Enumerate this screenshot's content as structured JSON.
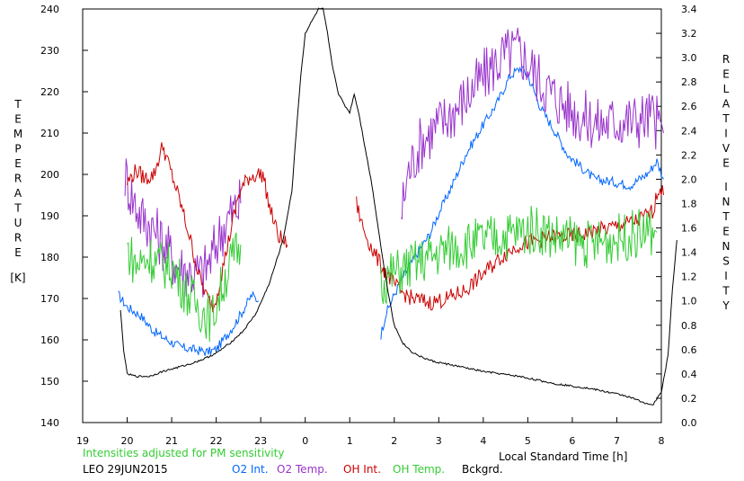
{
  "chart_data": {
    "type": "line",
    "left_axis": {
      "label_letters": [
        "T",
        "E",
        "M",
        "P",
        "E",
        "R",
        "A",
        "T",
        "U",
        "R",
        "E"
      ],
      "unit": "[K]",
      "range": [
        140,
        240
      ],
      "ticks": [
        140,
        150,
        160,
        170,
        180,
        190,
        200,
        210,
        220,
        230,
        240
      ]
    },
    "right_axis": {
      "label_word1": [
        "R",
        "E",
        "L",
        "A",
        "T",
        "I",
        "V",
        "E"
      ],
      "label_word2": [
        "I",
        "N",
        "T",
        "E",
        "N",
        "S",
        "I",
        "T",
        "Y"
      ],
      "range": [
        0.0,
        3.4
      ],
      "ticks": [
        "0.0",
        "0.2",
        "0.4",
        "0.6",
        "0.8",
        "1.0",
        "1.2",
        "1.4",
        "1.6",
        "1.8",
        "2.0",
        "2.2",
        "2.4",
        "2.6",
        "2.8",
        "3.0",
        "3.2",
        "3.4"
      ]
    },
    "x_axis": {
      "label": "Local Standard Time [h]",
      "ticks": [
        "19",
        "20",
        "21",
        "22",
        "23",
        "0",
        "1",
        "2",
        "3",
        "4",
        "5",
        "6",
        "7",
        "8"
      ]
    },
    "note": "Intensities adjusted for PM sensitivity",
    "station": "LEO 29JUN2015",
    "grid": false,
    "series": [
      {
        "name": "O2 Int.",
        "color": "#0066ff",
        "axis": "right",
        "segments": [
          [
            [
              19.8,
              1.05
            ],
            [
              20.0,
              0.95
            ],
            [
              20.3,
              0.88
            ],
            [
              20.6,
              0.75
            ],
            [
              20.9,
              0.68
            ],
            [
              21.2,
              0.62
            ],
            [
              21.5,
              0.6
            ],
            [
              21.8,
              0.58
            ],
            [
              22.0,
              0.6
            ],
            [
              22.2,
              0.7
            ],
            [
              22.4,
              0.8
            ],
            [
              22.6,
              0.92
            ],
            [
              22.8,
              1.05
            ],
            [
              22.95,
              1.0
            ]
          ],
          [
            [
              25.7,
              0.72
            ],
            [
              25.8,
              0.88
            ],
            [
              26.0,
              1.05
            ],
            [
              26.2,
              1.2
            ],
            [
              26.5,
              1.38
            ],
            [
              26.8,
              1.55
            ],
            [
              27.0,
              1.72
            ],
            [
              27.3,
              1.95
            ],
            [
              27.6,
              2.2
            ],
            [
              28.0,
              2.45
            ],
            [
              28.3,
              2.62
            ],
            [
              28.6,
              2.85
            ],
            [
              28.85,
              2.92
            ],
            [
              29.0,
              2.85
            ],
            [
              29.3,
              2.58
            ],
            [
              29.6,
              2.4
            ],
            [
              29.9,
              2.2
            ],
            [
              30.2,
              2.1
            ],
            [
              30.5,
              2.0
            ],
            [
              30.9,
              1.98
            ],
            [
              31.3,
              1.95
            ],
            [
              31.7,
              2.05
            ],
            [
              31.9,
              2.15
            ],
            [
              32.05,
              2.0
            ]
          ]
        ]
      },
      {
        "name": "O2 Temp.",
        "color": "#9933cc",
        "axis": "left",
        "segments": [
          [
            [
              19.95,
              200
            ],
            [
              20.1,
              195
            ],
            [
              20.3,
              190
            ],
            [
              20.5,
              188
            ],
            [
              20.7,
              185
            ],
            [
              20.9,
              182
            ],
            [
              21.1,
              178
            ],
            [
              21.3,
              177
            ],
            [
              21.5,
              176
            ],
            [
              21.7,
              176
            ],
            [
              21.9,
              180
            ],
            [
              22.1,
              186
            ],
            [
              22.3,
              190
            ],
            [
              22.55,
              193
            ]
          ],
          [
            [
              26.15,
              190
            ],
            [
              26.3,
              200
            ],
            [
              26.6,
              208
            ],
            [
              27.0,
              212
            ],
            [
              27.4,
              216
            ],
            [
              27.8,
              221
            ],
            [
              28.2,
              226
            ],
            [
              28.5,
              229
            ],
            [
              28.8,
              230
            ],
            [
              29.0,
              227
            ],
            [
              29.4,
              221
            ],
            [
              29.8,
              217
            ],
            [
              30.2,
              214
            ],
            [
              30.6,
              212
            ],
            [
              31.0,
              213
            ],
            [
              31.4,
              213
            ],
            [
              31.8,
              214
            ],
            [
              32.05,
              210
            ]
          ]
        ]
      },
      {
        "name": "OH Int.",
        "color": "#cc0000",
        "axis": "left",
        "segments": [
          [
            [
              20.0,
              198
            ],
            [
              20.2,
              201
            ],
            [
              20.4,
              199
            ],
            [
              20.6,
              200
            ],
            [
              20.8,
              207
            ],
            [
              21.0,
              200
            ],
            [
              21.2,
              193
            ],
            [
              21.4,
              185
            ],
            [
              21.6,
              176
            ],
            [
              21.8,
              170
            ],
            [
              21.95,
              168
            ],
            [
              22.1,
              175
            ],
            [
              22.3,
              185
            ],
            [
              22.5,
              195
            ],
            [
              22.7,
              199
            ],
            [
              22.9,
              200
            ],
            [
              23.05,
              200
            ],
            [
              23.2,
              192
            ],
            [
              23.4,
              185
            ],
            [
              23.6,
              183
            ]
          ],
          [
            [
              25.15,
              193
            ],
            [
              25.3,
              187
            ],
            [
              25.5,
              182
            ],
            [
              25.7,
              178
            ],
            [
              25.9,
              175
            ],
            [
              26.1,
              172
            ],
            [
              26.4,
              170
            ],
            [
              26.8,
              169
            ],
            [
              27.2,
              170
            ],
            [
              27.6,
              172
            ],
            [
              28.0,
              176
            ],
            [
              28.4,
              180
            ],
            [
              28.8,
              183
            ],
            [
              29.2,
              184
            ],
            [
              29.6,
              185
            ],
            [
              30.0,
              185
            ],
            [
              30.4,
              186
            ],
            [
              30.8,
              187
            ],
            [
              31.2,
              188
            ],
            [
              31.5,
              189
            ],
            [
              31.8,
              191
            ],
            [
              31.95,
              197
            ],
            [
              32.05,
              195
            ]
          ]
        ]
      },
      {
        "name": "OH Temp.",
        "color": "#33cc33",
        "axis": "left",
        "segments": [
          [
            [
              20.0,
              182
            ],
            [
              20.2,
              178
            ],
            [
              20.5,
              180
            ],
            [
              20.8,
              178
            ],
            [
              21.0,
              178
            ],
            [
              21.3,
              172
            ],
            [
              21.6,
              168
            ],
            [
              21.9,
              165
            ],
            [
              22.1,
              172
            ],
            [
              22.3,
              178
            ],
            [
              22.55,
              183
            ]
          ],
          [
            [
              25.7,
              174
            ],
            [
              26.0,
              176
            ],
            [
              26.4,
              178
            ],
            [
              26.8,
              180
            ],
            [
              27.2,
              182
            ],
            [
              27.6,
              183
            ],
            [
              28.0,
              184
            ],
            [
              28.4,
              185
            ],
            [
              28.8,
              186
            ],
            [
              29.2,
              187
            ],
            [
              29.6,
              185
            ],
            [
              30.0,
              184
            ],
            [
              30.4,
              183
            ],
            [
              30.8,
              184
            ],
            [
              31.2,
              185
            ],
            [
              31.6,
              186
            ],
            [
              31.9,
              186
            ]
          ]
        ]
      },
      {
        "name": "Bckgrd.",
        "color": "#000000",
        "axis": "right",
        "segments": [
          [
            [
              19.85,
              0.92
            ],
            [
              19.92,
              0.6
            ],
            [
              20.0,
              0.4
            ],
            [
              20.2,
              0.38
            ],
            [
              20.5,
              0.38
            ],
            [
              20.8,
              0.42
            ],
            [
              21.1,
              0.45
            ],
            [
              21.4,
              0.48
            ],
            [
              21.7,
              0.52
            ],
            [
              22.0,
              0.57
            ],
            [
              22.3,
              0.65
            ],
            [
              22.6,
              0.75
            ],
            [
              22.9,
              0.9
            ],
            [
              23.2,
              1.15
            ],
            [
              23.5,
              1.5
            ],
            [
              23.7,
              1.9
            ],
            [
              23.8,
              2.4
            ],
            [
              23.9,
              2.85
            ],
            [
              24.0,
              3.2
            ],
            [
              24.15,
              3.3
            ],
            [
              24.3,
              3.4
            ],
            [
              24.4,
              3.4
            ],
            [
              24.5,
              3.2
            ],
            [
              24.6,
              2.95
            ],
            [
              24.75,
              2.7
            ],
            [
              24.9,
              2.6
            ],
            [
              25.0,
              2.55
            ],
            [
              25.1,
              2.7
            ],
            [
              25.2,
              2.55
            ],
            [
              25.35,
              2.25
            ],
            [
              25.5,
              1.95
            ],
            [
              25.6,
              1.7
            ],
            [
              25.7,
              1.45
            ],
            [
              25.8,
              1.2
            ],
            [
              25.9,
              1.0
            ],
            [
              26.0,
              0.8
            ],
            [
              26.2,
              0.65
            ],
            [
              26.4,
              0.58
            ],
            [
              26.6,
              0.54
            ],
            [
              26.9,
              0.5
            ],
            [
              27.2,
              0.48
            ],
            [
              27.6,
              0.45
            ],
            [
              28.0,
              0.42
            ],
            [
              28.4,
              0.4
            ],
            [
              28.8,
              0.38
            ],
            [
              29.2,
              0.35
            ],
            [
              29.6,
              0.32
            ],
            [
              30.0,
              0.3
            ],
            [
              30.4,
              0.28
            ],
            [
              30.8,
              0.25
            ],
            [
              31.2,
              0.22
            ],
            [
              31.5,
              0.18
            ],
            [
              31.8,
              0.14
            ],
            [
              32.0,
              0.25
            ],
            [
              32.15,
              0.55
            ],
            [
              32.25,
              1.1
            ],
            [
              32.35,
              1.5
            ]
          ]
        ]
      }
    ]
  }
}
